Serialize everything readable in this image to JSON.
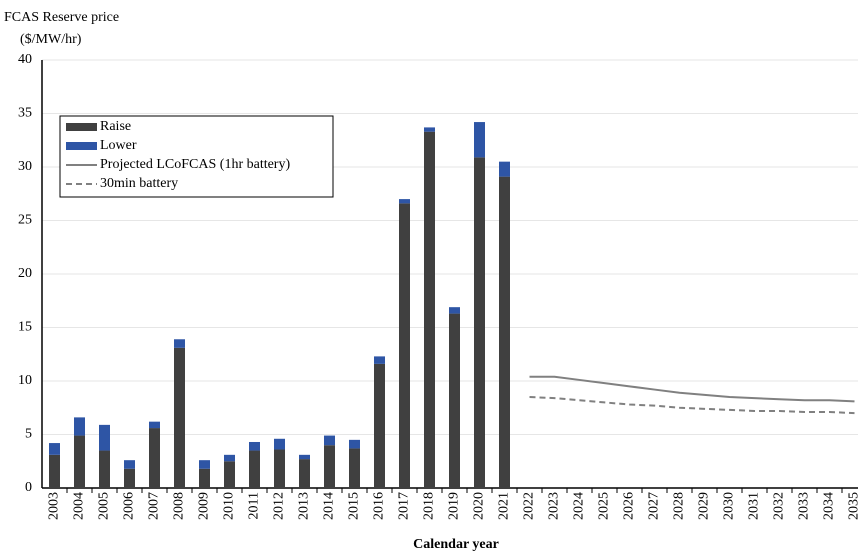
{
  "chart_data": {
    "type": "bar",
    "stacked": true,
    "ylabel": [
      "FCAS Reserve price",
      "($/MW/hr)"
    ],
    "xlabel": "Calendar year",
    "categories": [
      "2003",
      "2004",
      "2005",
      "2006",
      "2007",
      "2008",
      "2009",
      "2010",
      "2011",
      "2012",
      "2013",
      "2014",
      "2015",
      "2016",
      "2017",
      "2018",
      "2019",
      "2020",
      "2021",
      "2022",
      "2023",
      "2024",
      "2025",
      "2026",
      "2027",
      "2028",
      "2029",
      "2030",
      "2031",
      "2032",
      "2033",
      "2034",
      "2035"
    ],
    "series": [
      {
        "name": "Raise",
        "type": "bar",
        "color": "#404040",
        "values": [
          3.1,
          4.9,
          3.5,
          1.8,
          5.6,
          13.1,
          1.8,
          2.5,
          3.5,
          3.6,
          2.7,
          4.0,
          3.7,
          11.6,
          26.6,
          33.3,
          16.3,
          30.9,
          29.1,
          null,
          null,
          null,
          null,
          null,
          null,
          null,
          null,
          null,
          null,
          null,
          null,
          null,
          null
        ]
      },
      {
        "name": "Lower",
        "type": "bar",
        "color": "#2e55a5",
        "values": [
          1.1,
          1.7,
          2.4,
          0.8,
          0.6,
          0.8,
          0.8,
          0.6,
          0.8,
          1.0,
          0.4,
          0.9,
          0.8,
          0.7,
          0.4,
          0.4,
          0.6,
          3.3,
          1.4,
          null,
          null,
          null,
          null,
          null,
          null,
          null,
          null,
          null,
          null,
          null,
          null,
          null,
          null
        ]
      },
      {
        "name": "Projected LCoFCAS (1hr battery)",
        "type": "line",
        "dashed": false,
        "color": "#808080",
        "values": [
          null,
          null,
          null,
          null,
          null,
          null,
          null,
          null,
          null,
          null,
          null,
          null,
          null,
          null,
          null,
          null,
          null,
          null,
          null,
          10.4,
          10.4,
          10.1,
          9.8,
          9.5,
          9.2,
          8.9,
          8.7,
          8.5,
          8.4,
          8.3,
          8.2,
          8.2,
          8.1
        ]
      },
      {
        "name": "30min battery",
        "type": "line",
        "dashed": true,
        "color": "#808080",
        "values": [
          null,
          null,
          null,
          null,
          null,
          null,
          null,
          null,
          null,
          null,
          null,
          null,
          null,
          null,
          null,
          null,
          null,
          null,
          null,
          8.5,
          8.4,
          8.2,
          8.0,
          7.8,
          7.7,
          7.5,
          7.4,
          7.3,
          7.2,
          7.2,
          7.1,
          7.1,
          7.0
        ]
      }
    ],
    "ylim": [
      0,
      40
    ],
    "yticks": [
      0,
      5,
      10,
      15,
      20,
      25,
      30,
      35,
      40
    ],
    "grid": true
  }
}
